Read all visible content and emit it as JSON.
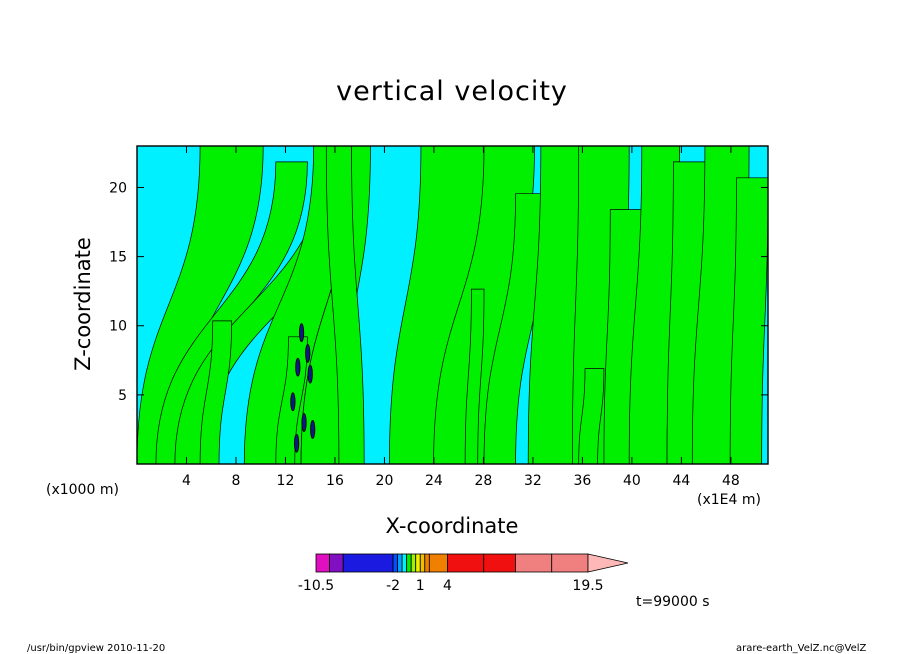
{
  "chart_data": {
    "type": "heatmap",
    "title": "vertical velocity",
    "xlabel": "X-coordinate",
    "ylabel": "Z-coordinate",
    "x_multiplier_label": "(x1000 m)",
    "x_unit_label": "(x1E4 m)",
    "x_ticks": [
      "4",
      "8",
      "12",
      "16",
      "20",
      "24",
      "28",
      "32",
      "36",
      "40",
      "44",
      "48"
    ],
    "y_ticks": [
      "5",
      "10",
      "15",
      "20"
    ],
    "xlim": [
      0,
      51
    ],
    "ylim": [
      0,
      23
    ],
    "colorbar": {
      "levels": [
        -10.5,
        -9,
        -7.5,
        -2,
        -1.5,
        -1,
        -0.5,
        0,
        0.5,
        1,
        1.5,
        2,
        4,
        8,
        11.5,
        15.5,
        19.5
      ],
      "labels": [
        "-10.5",
        "-2",
        "1",
        "4",
        "19.5"
      ],
      "colors": [
        "#e010c0",
        "#8010c0",
        "#1a1ae0",
        "#0050ff",
        "#00a0ff",
        "#00f0ff",
        "#00f000",
        "#a0f000",
        "#f0f000",
        "#f0c000",
        "#f08000",
        "#f08000",
        "#f01010",
        "#f01010",
        "#f08080",
        "#f08080"
      ],
      "extend_color": "#ffb8b8"
    },
    "dominant_colors": {
      "negative_weak": "#00f0ff",
      "positive_weak": "#00f000"
    }
  },
  "time_label": "t=99000 s",
  "footer": {
    "left": "/usr/bin/gpview   2010-11-20",
    "right": "arare-earth_VelZ.nc@VelZ"
  }
}
